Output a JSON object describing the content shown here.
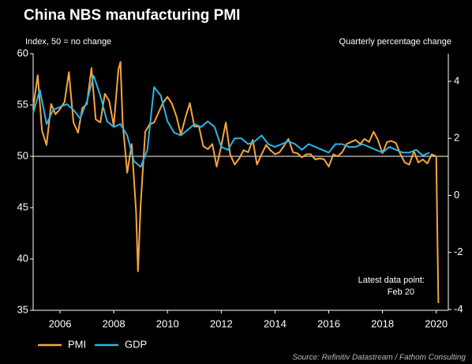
{
  "chart_data": {
    "type": "line",
    "title": "China NBS manufacturing PMI",
    "subtitle": "Index, 50 = no change",
    "y2_label": "Quarterly percentage change",
    "annotation": [
      "Latest data point:",
      "Feb 20"
    ],
    "source": "Source: Refinitiv Datastream / Fathom Consulting",
    "xlim": [
      2005.0,
      2020.45
    ],
    "xticks": [
      2006,
      2008,
      2010,
      2012,
      2014,
      2016,
      2018,
      2020
    ],
    "ylim": [
      35,
      60
    ],
    "yticks": [
      35,
      40,
      45,
      50,
      55,
      60
    ],
    "y2lim": [
      -4.03,
      4.97
    ],
    "y2ticks": [
      -4,
      -2,
      0,
      2,
      4
    ],
    "reference_line": 50,
    "legend": "bottom-left",
    "series": [
      {
        "name": "PMI",
        "color": "#f7a540",
        "x": [
          2005.0,
          2005.17,
          2005.33,
          2005.5,
          2005.67,
          2005.83,
          2006.0,
          2006.17,
          2006.33,
          2006.5,
          2006.67,
          2006.83,
          2007.0,
          2007.17,
          2007.33,
          2007.5,
          2007.67,
          2007.83,
          2008.0,
          2008.17,
          2008.25,
          2008.33,
          2008.5,
          2008.67,
          2008.83,
          2008.9,
          2009.0,
          2009.17,
          2009.33,
          2009.5,
          2009.67,
          2009.83,
          2010.0,
          2010.17,
          2010.33,
          2010.5,
          2010.67,
          2010.83,
          2011.0,
          2011.17,
          2011.33,
          2011.5,
          2011.67,
          2011.83,
          2012.0,
          2012.17,
          2012.33,
          2012.5,
          2012.67,
          2012.83,
          2013.0,
          2013.17,
          2013.33,
          2013.5,
          2013.67,
          2013.83,
          2014.0,
          2014.17,
          2014.33,
          2014.5,
          2014.67,
          2014.83,
          2015.0,
          2015.17,
          2015.33,
          2015.5,
          2015.67,
          2015.83,
          2016.0,
          2016.17,
          2016.33,
          2016.5,
          2016.67,
          2016.83,
          2017.0,
          2017.17,
          2017.33,
          2017.5,
          2017.67,
          2017.83,
          2018.0,
          2018.17,
          2018.33,
          2018.5,
          2018.67,
          2018.83,
          2019.0,
          2019.17,
          2019.33,
          2019.5,
          2019.67,
          2019.83,
          2020.0,
          2020.08
        ],
        "values": [
          54.7,
          57.9,
          52.5,
          51.1,
          55.1,
          54.1,
          54.6,
          55.3,
          58.2,
          53.3,
          52.3,
          54.7,
          55.1,
          58.6,
          53.6,
          53.3,
          56.1,
          55.4,
          53.0,
          58.4,
          59.2,
          53.3,
          48.4,
          51.2,
          44.6,
          38.8,
          45.3,
          52.4,
          53.1,
          53.3,
          54.3,
          55.2,
          55.8,
          55.1,
          53.9,
          52.1,
          53.8,
          55.2,
          52.9,
          52.9,
          51.0,
          50.7,
          51.2,
          49.0,
          51.0,
          53.3,
          50.2,
          49.2,
          49.8,
          50.6,
          50.4,
          51.6,
          49.2,
          50.2,
          51.1,
          50.6,
          50.2,
          50.4,
          51.0,
          51.7,
          50.4,
          50.3,
          49.9,
          50.2,
          50.2,
          49.7,
          49.8,
          49.7,
          49.0,
          50.2,
          50.0,
          50.4,
          51.2,
          51.4,
          51.6,
          51.2,
          51.7,
          51.4,
          52.4,
          51.6,
          50.3,
          51.4,
          51.5,
          51.3,
          50.2,
          49.4,
          49.2,
          50.5,
          49.4,
          49.7,
          49.3,
          50.2,
          50.0,
          35.7
        ]
      },
      {
        "name": "GDP",
        "color": "#29b6e8",
        "axis": "y2",
        "x": [
          2005.0,
          2005.25,
          2005.5,
          2005.75,
          2006.0,
          2006.25,
          2006.5,
          2006.75,
          2007.0,
          2007.25,
          2007.5,
          2007.75,
          2008.0,
          2008.25,
          2008.5,
          2008.75,
          2009.0,
          2009.25,
          2009.5,
          2009.75,
          2010.0,
          2010.25,
          2010.5,
          2010.75,
          2011.0,
          2011.25,
          2011.5,
          2011.75,
          2012.0,
          2012.25,
          2012.5,
          2012.75,
          2013.0,
          2013.25,
          2013.5,
          2013.75,
          2014.0,
          2014.25,
          2014.5,
          2014.75,
          2015.0,
          2015.25,
          2015.5,
          2015.75,
          2016.0,
          2016.25,
          2016.5,
          2016.75,
          2017.0,
          2017.25,
          2017.5,
          2017.75,
          2018.0,
          2018.25,
          2018.5,
          2018.75,
          2019.0,
          2019.25,
          2019.5,
          2019.75
        ],
        "values": [
          2.9,
          3.7,
          2.5,
          3.0,
          3.1,
          3.2,
          3.0,
          2.7,
          3.3,
          4.2,
          3.5,
          2.6,
          2.4,
          2.5,
          2.1,
          1.2,
          1.0,
          1.6,
          3.8,
          3.5,
          2.6,
          2.2,
          2.1,
          2.3,
          2.5,
          2.4,
          2.6,
          2.4,
          1.7,
          1.6,
          2.0,
          2.0,
          1.8,
          1.9,
          2.1,
          1.8,
          1.7,
          1.8,
          1.9,
          1.8,
          1.6,
          1.8,
          1.7,
          1.6,
          1.5,
          1.8,
          1.8,
          1.7,
          1.7,
          1.8,
          1.7,
          1.6,
          1.5,
          1.7,
          1.6,
          1.5,
          1.5,
          1.6,
          1.4,
          1.5
        ]
      }
    ]
  }
}
